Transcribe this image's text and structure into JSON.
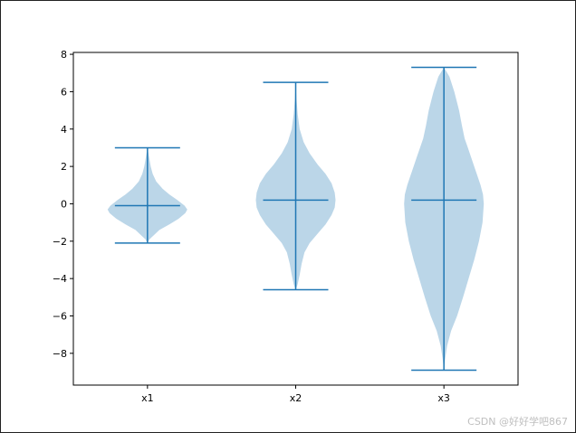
{
  "chart_data": {
    "type": "violin",
    "categories": [
      "x1",
      "x2",
      "x3"
    ],
    "yticks": [
      "8",
      "6",
      "4",
      "2",
      "0",
      "−2",
      "−4",
      "−6",
      "−8"
    ],
    "ylim": [
      -9.7,
      8.1
    ],
    "grid": false,
    "legend": "none",
    "series": [
      {
        "min": -2.1,
        "max": 3.0,
        "median": -0.1,
        "profile": [
          [
            -2.1,
            0.0
          ],
          [
            -1.9,
            0.05
          ],
          [
            -1.7,
            0.15
          ],
          [
            -1.4,
            0.3
          ],
          [
            -1.1,
            0.55
          ],
          [
            -0.8,
            0.78
          ],
          [
            -0.5,
            0.95
          ],
          [
            -0.3,
            1.0
          ],
          [
            -0.1,
            0.93
          ],
          [
            0.2,
            0.75
          ],
          [
            0.5,
            0.55
          ],
          [
            0.8,
            0.38
          ],
          [
            1.2,
            0.22
          ],
          [
            1.6,
            0.13
          ],
          [
            2.0,
            0.08
          ],
          [
            2.5,
            0.04
          ],
          [
            3.0,
            0.0
          ]
        ]
      },
      {
        "min": -4.6,
        "max": 6.5,
        "median": 0.2,
        "profile": [
          [
            -4.6,
            0.0
          ],
          [
            -4.3,
            0.05
          ],
          [
            -3.8,
            0.1
          ],
          [
            -3.2,
            0.15
          ],
          [
            -2.6,
            0.22
          ],
          [
            -2.1,
            0.35
          ],
          [
            -1.6,
            0.55
          ],
          [
            -1.1,
            0.75
          ],
          [
            -0.6,
            0.9
          ],
          [
            -0.2,
            0.98
          ],
          [
            0.2,
            1.0
          ],
          [
            0.6,
            0.98
          ],
          [
            1.1,
            0.9
          ],
          [
            1.6,
            0.75
          ],
          [
            2.1,
            0.55
          ],
          [
            2.7,
            0.35
          ],
          [
            3.3,
            0.2
          ],
          [
            4.0,
            0.1
          ],
          [
            4.8,
            0.05
          ],
          [
            5.6,
            0.02
          ],
          [
            6.5,
            0.0
          ]
        ]
      },
      {
        "min": -8.9,
        "max": 7.3,
        "median": 0.2,
        "profile": [
          [
            -8.9,
            0.0
          ],
          [
            -8.3,
            0.03
          ],
          [
            -7.6,
            0.08
          ],
          [
            -6.8,
            0.18
          ],
          [
            -6.0,
            0.33
          ],
          [
            -5.0,
            0.48
          ],
          [
            -4.0,
            0.62
          ],
          [
            -3.0,
            0.76
          ],
          [
            -2.0,
            0.88
          ],
          [
            -1.0,
            0.97
          ],
          [
            0.0,
            1.0
          ],
          [
            0.5,
            0.98
          ],
          [
            1.0,
            0.92
          ],
          [
            1.5,
            0.84
          ],
          [
            2.0,
            0.76
          ],
          [
            2.5,
            0.68
          ],
          [
            3.0,
            0.6
          ],
          [
            3.5,
            0.52
          ],
          [
            4.2,
            0.45
          ],
          [
            5.0,
            0.38
          ],
          [
            6.0,
            0.26
          ],
          [
            6.8,
            0.14
          ],
          [
            7.3,
            0.0
          ]
        ]
      }
    ],
    "colors": {
      "body": "#1f77b4",
      "line": "#1f77b4"
    }
  },
  "watermark": "CSDN @好好学吧867"
}
